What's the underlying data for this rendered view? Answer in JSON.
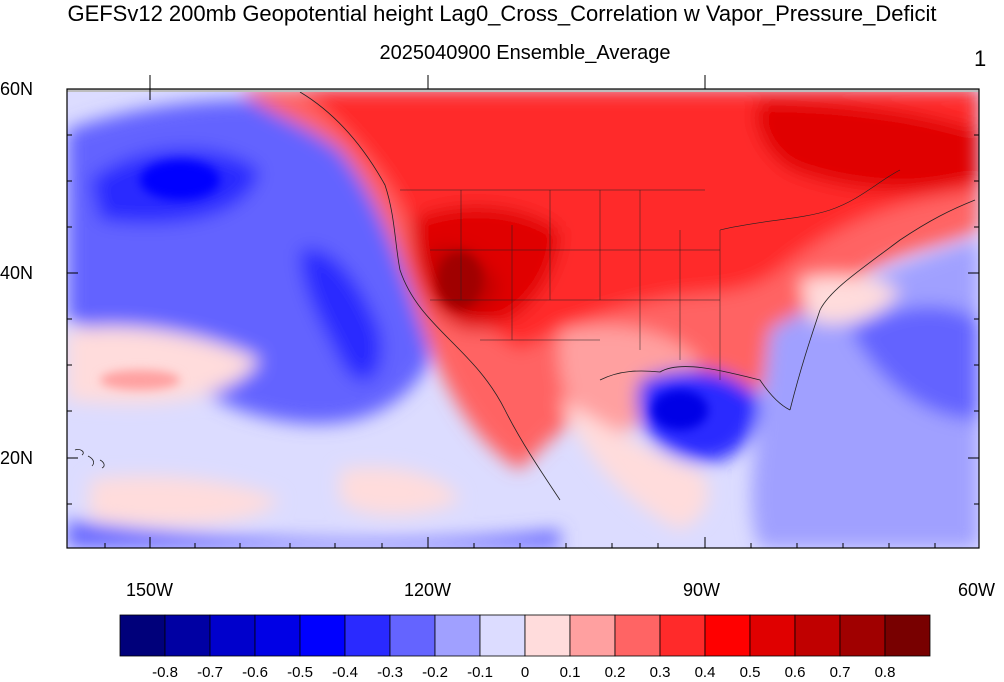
{
  "title": "GEFSv12 200mb Geopotential height Lag0_Cross_Correlation w Vapor_Pressure_Deficit",
  "subtitle": "2025040900 Ensemble_Average",
  "page_number": "1",
  "map": {
    "projection": "cylindrical equidistant",
    "lon_range": [
      -160,
      -60
    ],
    "lat_range": [
      10,
      60
    ],
    "features": [
      "coastlines",
      "US state boundaries",
      "country boundaries"
    ],
    "lat_labels": [
      "60N",
      "40N",
      "20N"
    ],
    "lon_labels": [
      "150W",
      "120W",
      "90W",
      "60W"
    ]
  },
  "colorbar": {
    "orientation": "horizontal",
    "labels": [
      "-0.8",
      "-0.7",
      "-0.6",
      "-0.5",
      "-0.4",
      "-0.3",
      "-0.2",
      "-0.1",
      "0",
      "0.1",
      "0.2",
      "0.3",
      "0.4",
      "0.5",
      "0.6",
      "0.7",
      "0.8"
    ],
    "colors": [
      "#00007a",
      "#0000a3",
      "#0000cc",
      "#0000e6",
      "#0000ff",
      "#2a2aff",
      "#6464ff",
      "#a0a0ff",
      "#dcdcff",
      "#ffdcdc",
      "#ffa0a0",
      "#ff6464",
      "#ff2a2a",
      "#ff0000",
      "#e00000",
      "#c00000",
      "#a00000",
      "#780000"
    ]
  }
}
